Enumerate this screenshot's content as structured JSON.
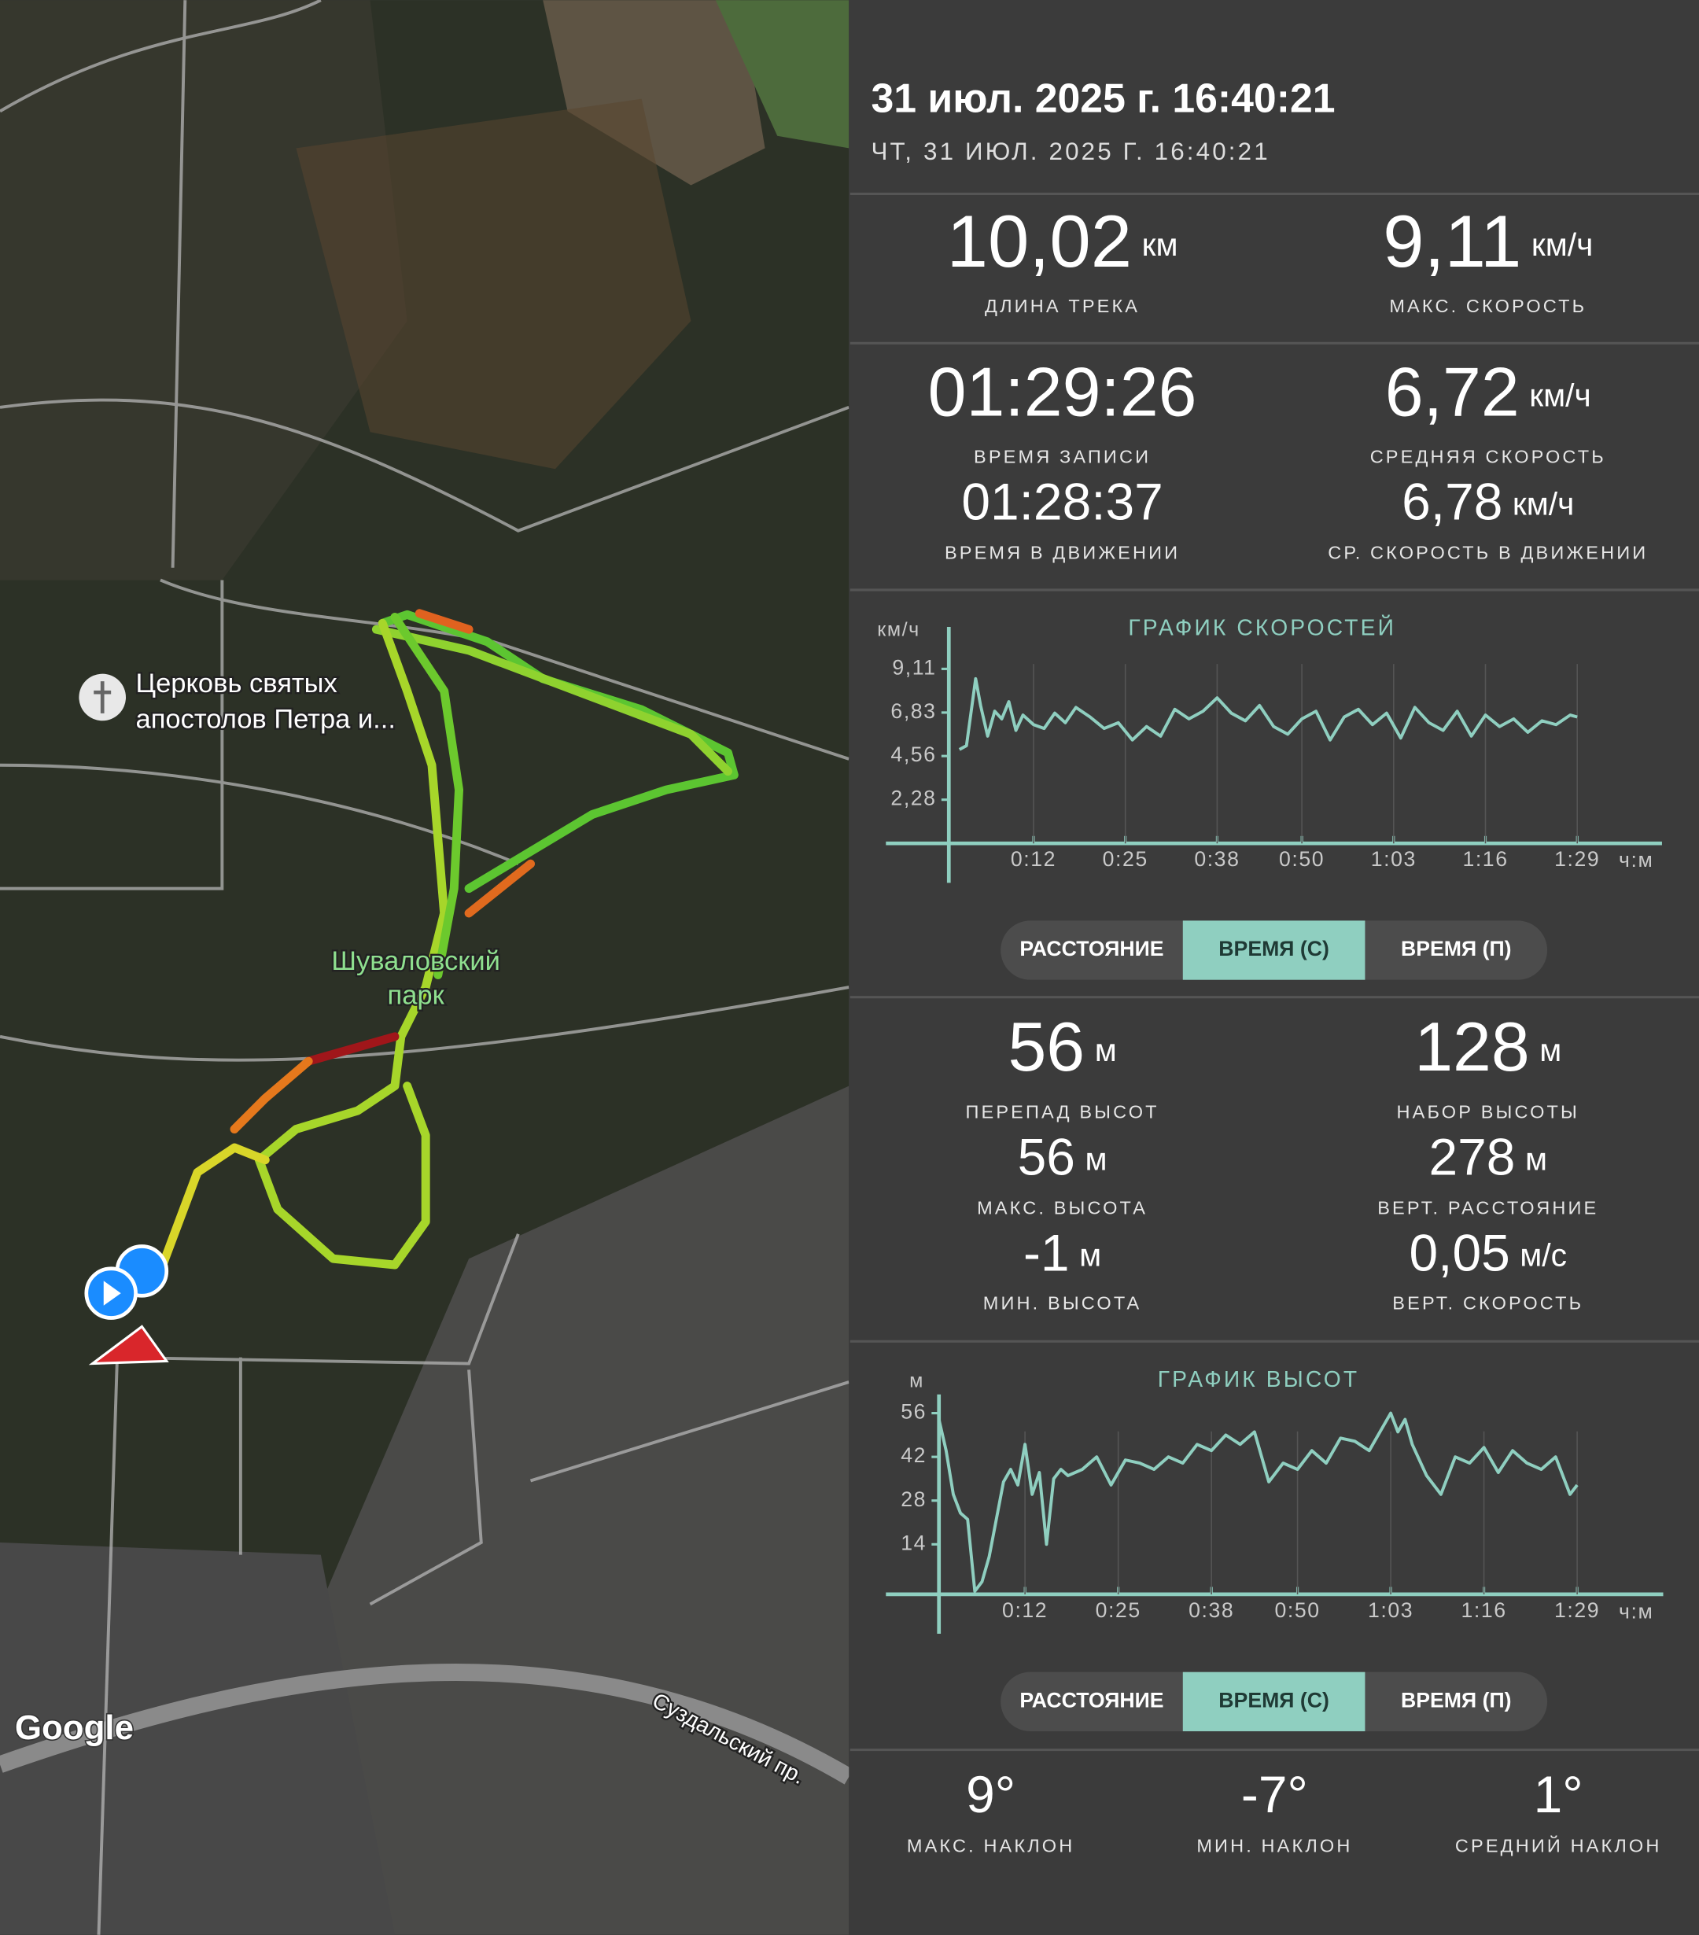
{
  "header": {
    "title": "31 июл. 2025 г. 16:40:21",
    "subtitle": "ЧТ, 31 ИЮЛ. 2025 Г. 16:40:21"
  },
  "map": {
    "labels": [
      "Церковь святых",
      "апостолов Петра и...",
      "Шуваловский",
      "парк",
      "Суздальский пр."
    ],
    "attribution": "Google"
  },
  "track_stats": [
    {
      "value": "10,02",
      "unit": "км",
      "label": "ДЛИНА ТРЕКА"
    },
    {
      "value": "9,11",
      "unit": "км/ч",
      "label": "МАКС. СКОРОСТЬ"
    },
    {
      "value": "01:29:26",
      "label": "ВРЕМЯ ЗАПИСИ"
    },
    {
      "value": "6,72",
      "unit": "км/ч",
      "label": "СРЕДНЯЯ СКОРОСТЬ"
    },
    {
      "value": "01:28:37",
      "label": "ВРЕМЯ В ДВИЖЕНИИ"
    },
    {
      "value": "6,78",
      "unit": "км/ч",
      "label": "СР. СКОРОСТЬ В ДВИЖЕНИИ"
    }
  ],
  "elevation_stats": [
    {
      "value": "56",
      "unit": "м",
      "label": "ПЕРЕПАД ВЫСОТ"
    },
    {
      "value": "128",
      "unit": "м",
      "label": "НАБОР ВЫСОТЫ"
    },
    {
      "value": "56",
      "unit": "м",
      "label": "МАКС. ВЫСОТА"
    },
    {
      "value": "278",
      "unit": "м",
      "label": "ВЕРТ. РАССТОЯНИЕ"
    },
    {
      "value": "-1",
      "unit": "м",
      "label": "МИН. ВЫСОТА"
    },
    {
      "value": "0,05",
      "unit": "м/с",
      "label": "ВЕРТ. СКОРОСТЬ"
    }
  ],
  "slope_stats": [
    {
      "value": "9°",
      "label": "МАКС. НАКЛОН"
    },
    {
      "value": "-7°",
      "label": "МИН. НАКЛОН"
    },
    {
      "value": "1°",
      "label": "СРЕДНИЙ НАКЛОН"
    }
  ],
  "toggle_options": [
    "РАССТОЯНИЕ",
    "ВРЕМЯ (С)",
    "ВРЕМЯ (П)"
  ],
  "active_toggle": "ВРЕМЯ (С)",
  "chart_data": [
    {
      "type": "line",
      "title": "ГРАФИК СКОРОСТЕЙ",
      "y_label": "км/ч",
      "x_label": "ч:м",
      "xlim": [
        0,
        101
      ],
      "ylim": [
        0,
        11.3
      ],
      "xticks": [
        {
          "value": 12,
          "label": "0:12"
        },
        {
          "value": 25,
          "label": "0:25"
        },
        {
          "value": 38,
          "label": "0:38"
        },
        {
          "value": 50,
          "label": "0:50"
        },
        {
          "value": 63,
          "label": "1:03"
        },
        {
          "value": 76,
          "label": "1:16"
        },
        {
          "value": 89,
          "label": "1:29"
        }
      ],
      "yticks": [
        {
          "value": 2.28,
          "label": "2,28"
        },
        {
          "value": 4.56,
          "label": "4,56"
        },
        {
          "value": 6.83,
          "label": "6,83"
        },
        {
          "value": 9.11,
          "label": "9,11"
        }
      ],
      "x": [
        1.5,
        2.5,
        3.8,
        4.5,
        5.5,
        6.5,
        7.5,
        8.5,
        9.5,
        10.5,
        12,
        13.5,
        15,
        16.5,
        18,
        20,
        22,
        24,
        26,
        28,
        30,
        32,
        34,
        36,
        38,
        40,
        42,
        44,
        46,
        48,
        50,
        52,
        54,
        56,
        58,
        60,
        62,
        64,
        66,
        68,
        70,
        72,
        74,
        76,
        78,
        80,
        82,
        84,
        86,
        88,
        89
      ],
      "series": [
        {
          "color": "#8fcfc0",
          "values": [
            4.9,
            5.1,
            8.6,
            7.2,
            5.6,
            6.9,
            6.5,
            7.4,
            5.9,
            6.7,
            6.2,
            6.0,
            6.8,
            6.3,
            7.1,
            6.6,
            6.0,
            6.3,
            5.4,
            6.1,
            5.6,
            7.0,
            6.5,
            6.9,
            7.6,
            6.8,
            6.4,
            7.2,
            6.1,
            5.7,
            6.5,
            6.9,
            5.4,
            6.6,
            7.0,
            6.2,
            6.8,
            5.5,
            7.1,
            6.3,
            5.9,
            6.9,
            5.6,
            6.7,
            6.1,
            6.5,
            5.8,
            6.4,
            6.2,
            6.7,
            6.6
          ]
        }
      ]
    },
    {
      "type": "line",
      "title": "ГРАФИК ВЫСОТ",
      "y_label": "м",
      "x_label": "ч:м",
      "xlim": [
        0,
        101
      ],
      "ylim": [
        -2,
        62
      ],
      "xticks": [
        {
          "value": 12,
          "label": "0:12"
        },
        {
          "value": 25,
          "label": "0:25"
        },
        {
          "value": 38,
          "label": "0:38"
        },
        {
          "value": 50,
          "label": "0:50"
        },
        {
          "value": 63,
          "label": "1:03"
        },
        {
          "value": 76,
          "label": "1:16"
        },
        {
          "value": 89,
          "label": "1:29"
        }
      ],
      "yticks": [
        14,
        28,
        42,
        56
      ],
      "x": [
        0,
        1,
        2,
        3,
        4,
        5,
        6,
        7,
        8,
        9,
        10,
        11,
        12,
        13,
        14,
        15,
        16,
        17,
        18,
        20,
        22,
        24,
        26,
        28,
        30,
        32,
        34,
        36,
        38,
        40,
        42,
        44,
        46,
        48,
        50,
        52,
        54,
        56,
        58,
        60,
        62,
        63,
        64,
        65,
        66,
        68,
        70,
        72,
        74,
        76,
        78,
        80,
        82,
        84,
        86,
        88,
        89
      ],
      "series": [
        {
          "color": "#8fcfc0",
          "values": [
            54,
            44,
            30,
            24,
            22,
            -1,
            2,
            10,
            22,
            34,
            38,
            33,
            46,
            30,
            37,
            14,
            35,
            38,
            36,
            38,
            42,
            33,
            41,
            40,
            38,
            42,
            40,
            46,
            44,
            49,
            46,
            50,
            34,
            40,
            38,
            44,
            40,
            48,
            47,
            44,
            52,
            56,
            50,
            54,
            46,
            36,
            30,
            42,
            40,
            45,
            37,
            44,
            40,
            38,
            42,
            30,
            33
          ]
        }
      ]
    }
  ]
}
